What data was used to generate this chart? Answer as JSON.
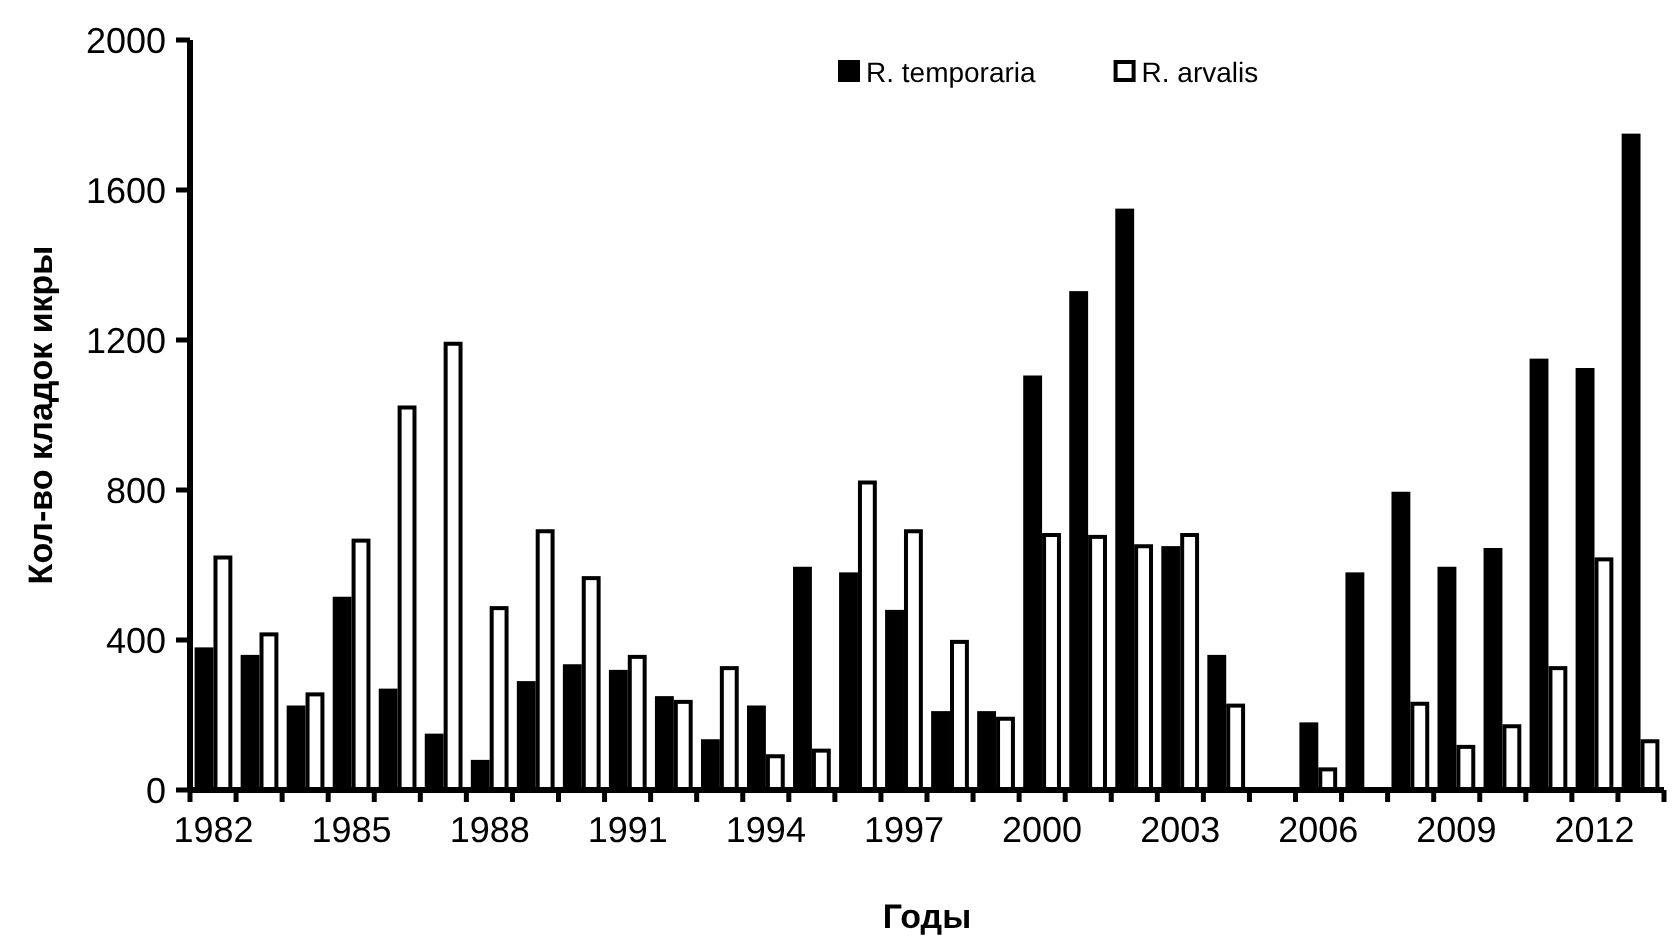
{
  "chart_data": {
    "type": "bar",
    "xlabel": "Годы",
    "ylabel": "Кол-во кладок икры",
    "categories": [
      "1982",
      null,
      null,
      "1985",
      null,
      null,
      "1988",
      null,
      null,
      "1991",
      null,
      null,
      "1994",
      null,
      null,
      "1997",
      null,
      null,
      "2000",
      null,
      null,
      "2003",
      null,
      null,
      "2006",
      null,
      null,
      "2009",
      null,
      null,
      "2012",
      null
    ],
    "series": [
      {
        "name": "R. temporaria",
        "color": "#000000",
        "values": [
          375,
          355,
          220,
          510,
          265,
          145,
          75,
          285,
          330,
          315,
          245,
          130,
          220,
          590,
          575,
          475,
          205,
          205,
          1100,
          1325,
          1545,
          645,
          355,
          0,
          175,
          575,
          790,
          590,
          640,
          1145,
          1120,
          1745
        ]
      },
      {
        "name": "R. arvalis",
        "color": "#ffffff",
        "values": [
          620,
          415,
          255,
          665,
          1020,
          1190,
          485,
          690,
          565,
          355,
          235,
          325,
          90,
          105,
          820,
          690,
          395,
          190,
          680,
          675,
          650,
          680,
          225,
          0,
          55,
          0,
          230,
          115,
          170,
          325,
          615,
          130
        ]
      }
    ],
    "ylim": [
      0,
      2000
    ],
    "yticks": [
      0,
      400,
      800,
      1200,
      1600,
      2000
    ],
    "grid": false,
    "legend": "top right"
  }
}
